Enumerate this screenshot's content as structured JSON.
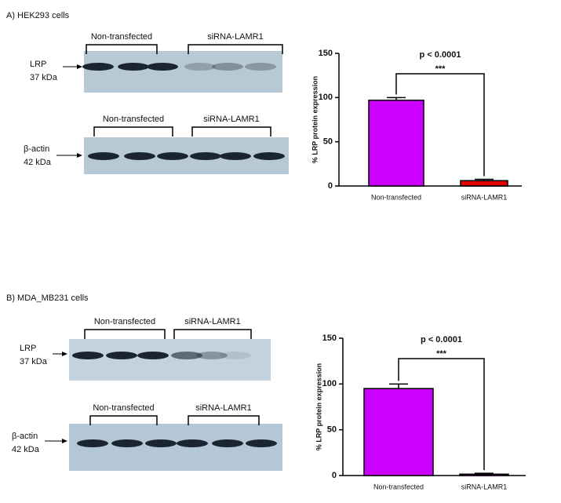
{
  "panels": [
    {
      "label": "A) HEK293 cells",
      "blots": [
        {
          "protein": "LRP",
          "size": "37 kDa",
          "groups": [
            "Non-transfected",
            "siRNA-LAMR1"
          ]
        },
        {
          "protein": "β-actin",
          "size": "42 kDa",
          "groups": [
            "Non-transfected",
            "siRNA-LAMR1"
          ]
        }
      ]
    },
    {
      "label": "B) MDA_MB231 cells",
      "blots": [
        {
          "protein": "LRP",
          "size": "37 kDa",
          "groups": [
            "Non-transfected",
            "siRNA-LAMR1"
          ]
        },
        {
          "protein": "β-actin",
          "size": "42 kDa",
          "groups": [
            "Non-transfected",
            "siRNA-LAMR1"
          ]
        }
      ]
    }
  ],
  "chart_data": [
    {
      "type": "bar",
      "title": "p < 0.0001",
      "annotation": "***",
      "ylabel": "% LRP protein expression",
      "categories": [
        "Non-transfected",
        "siRNA-LAMR1"
      ],
      "values": [
        97,
        6
      ],
      "errors": [
        3,
        1.5
      ],
      "colors": [
        "#cc00ff",
        "#e00000"
      ],
      "ylim": [
        0,
        150
      ],
      "yticks": [
        0,
        50,
        100,
        150
      ]
    },
    {
      "type": "bar",
      "title": "p < 0.0001",
      "annotation": "***",
      "ylabel": "% LRP protein expression",
      "categories": [
        "Non-transfected",
        "siRNA-LAMR1"
      ],
      "values": [
        95,
        1.5
      ],
      "errors": [
        5,
        1
      ],
      "colors": [
        "#cc00ff",
        "#9900cc"
      ],
      "ylim": [
        0,
        150
      ],
      "yticks": [
        0,
        50,
        100,
        150
      ]
    }
  ]
}
